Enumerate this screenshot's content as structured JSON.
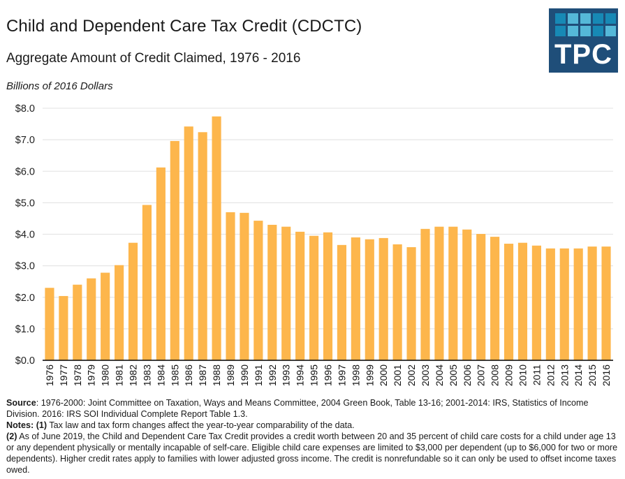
{
  "header": {
    "title": "Child and Dependent Care Tax Credit (CDCTC)",
    "subtitle": "Aggregate Amount of Credit Claimed, 1976 - 2016",
    "units": "Billions of 2016 Dollars"
  },
  "logo": {
    "text": "TPC",
    "background": "#1f4e79",
    "tile_colors": [
      "#1789b5",
      "#55b8d8",
      "#55b8d8",
      "#1789b5",
      "#1789b5",
      "#1789b5",
      "#55b8d8",
      "#55b8d8",
      "#1789b5",
      "#55b8d8"
    ]
  },
  "colors": {
    "bar": "#FDB64C",
    "grid": "#e6e6e6",
    "axis": "#000000"
  },
  "chart_data": {
    "type": "bar",
    "title": "Child and Dependent Care Tax Credit (CDCTC)",
    "subtitle": "Aggregate Amount of Credit Claimed, 1976 - 2016",
    "xlabel": "",
    "ylabel": "Billions of 2016 Dollars",
    "ylim": [
      0,
      8
    ],
    "yticks": [
      0,
      1,
      2,
      3,
      4,
      5,
      6,
      7,
      8
    ],
    "ytick_labels": [
      "$0.0",
      "$1.0",
      "$2.0",
      "$3.0",
      "$4.0",
      "$5.0",
      "$6.0",
      "$7.0",
      "$8.0"
    ],
    "grid": true,
    "legend": "none",
    "categories": [
      "1976",
      "1977",
      "1978",
      "1979",
      "1980",
      "1981",
      "1982",
      "1983",
      "1984",
      "1985",
      "1986",
      "1987",
      "1988",
      "1989",
      "1990",
      "1991",
      "1992",
      "1993",
      "1994",
      "1995",
      "1996",
      "1997",
      "1998",
      "1999",
      "2000",
      "2001",
      "2002",
      "2003",
      "2004",
      "2005",
      "2006",
      "2007",
      "2008",
      "2009",
      "2010",
      "2011",
      "2012",
      "2013",
      "2014",
      "2015",
      "2016"
    ],
    "values": [
      2.3,
      2.04,
      2.4,
      2.6,
      2.78,
      3.02,
      3.73,
      4.93,
      6.12,
      6.96,
      7.42,
      7.24,
      7.74,
      4.7,
      4.68,
      4.43,
      4.3,
      4.24,
      4.08,
      3.95,
      4.06,
      3.66,
      3.9,
      3.84,
      3.88,
      3.68,
      3.59,
      4.17,
      4.24,
      4.24,
      4.15,
      4.01,
      3.92,
      3.7,
      3.73,
      3.64,
      3.55,
      3.55,
      3.55,
      3.61,
      3.61
    ]
  },
  "footer": {
    "source_label": "Source",
    "source_text": ": 1976-2000: Joint Committee on Taxation, Ways and Means Committee, 2004 Green Book, Table 13-16; 2001-2014: IRS, Statistics of Income Division. 2016: IRS SOI Individual Complete Report Table 1.3.",
    "notes_label": "Notes:",
    "note1_label": "(1)",
    "note1_text": " Tax law and tax form changes affect the year-to-year comparability of the data.",
    "note2_label": "(2)",
    "note2_text": " As of June 2019, the Child and Dependent Care Tax Credit provides a credit worth between 20 and 35 percent of child care costs for a child under age 13 or any dependent physically or mentally incapable of self-care. Eligible child care expenses are limited to $3,000 per dependent (up to $6,000 for two or more dependents). Higher credit rates apply to families with lower adjusted gross income. The credit is nonrefundable so it can only be used to offset income taxes owed."
  }
}
